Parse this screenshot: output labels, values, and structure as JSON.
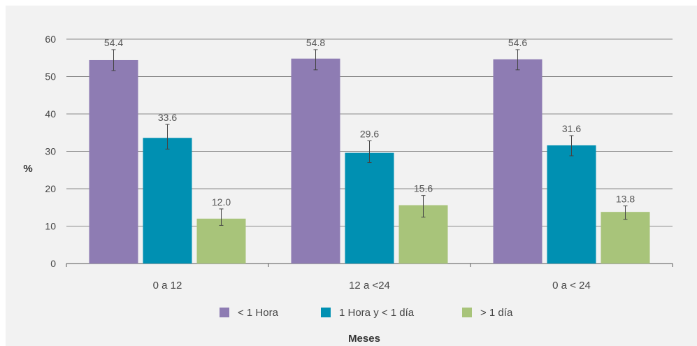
{
  "chart_data": {
    "type": "bar",
    "categories": [
      "0 a 12",
      "12 a <24",
      "0 a < 24"
    ],
    "series": [
      {
        "name": "< 1 Hora",
        "color": "#8e7cb3",
        "values": [
          54.4,
          54.8,
          54.6
        ],
        "labels": [
          "54.4",
          "54.8",
          "54.6"
        ],
        "err_low": [
          51.6,
          51.8,
          51.8
        ],
        "err_high": [
          57.2,
          57.2,
          57.2
        ]
      },
      {
        "name": "1 Hora y < 1 día",
        "color": "#0090b2",
        "values": [
          33.6,
          29.6,
          31.6
        ],
        "labels": [
          "33.6",
          "29.6",
          "31.6"
        ],
        "err_low": [
          30.6,
          27.0,
          28.8
        ],
        "err_high": [
          37.2,
          32.8,
          34.2
        ]
      },
      {
        "name": "> 1 día",
        "color": "#a8c47a",
        "values": [
          12.0,
          15.6,
          13.8
        ],
        "labels": [
          "12.0",
          "15.6",
          "13.8"
        ],
        "err_low": [
          10.2,
          12.4,
          11.8
        ],
        "err_high": [
          14.6,
          18.2,
          15.4
        ]
      }
    ],
    "xlabel": "Meses",
    "ylabel": "%",
    "ylim": [
      0,
      60
    ],
    "yticks": [
      "0",
      "10",
      "20",
      "30",
      "40",
      "50",
      "60"
    ],
    "grid": true,
    "legend_position": "bottom"
  }
}
